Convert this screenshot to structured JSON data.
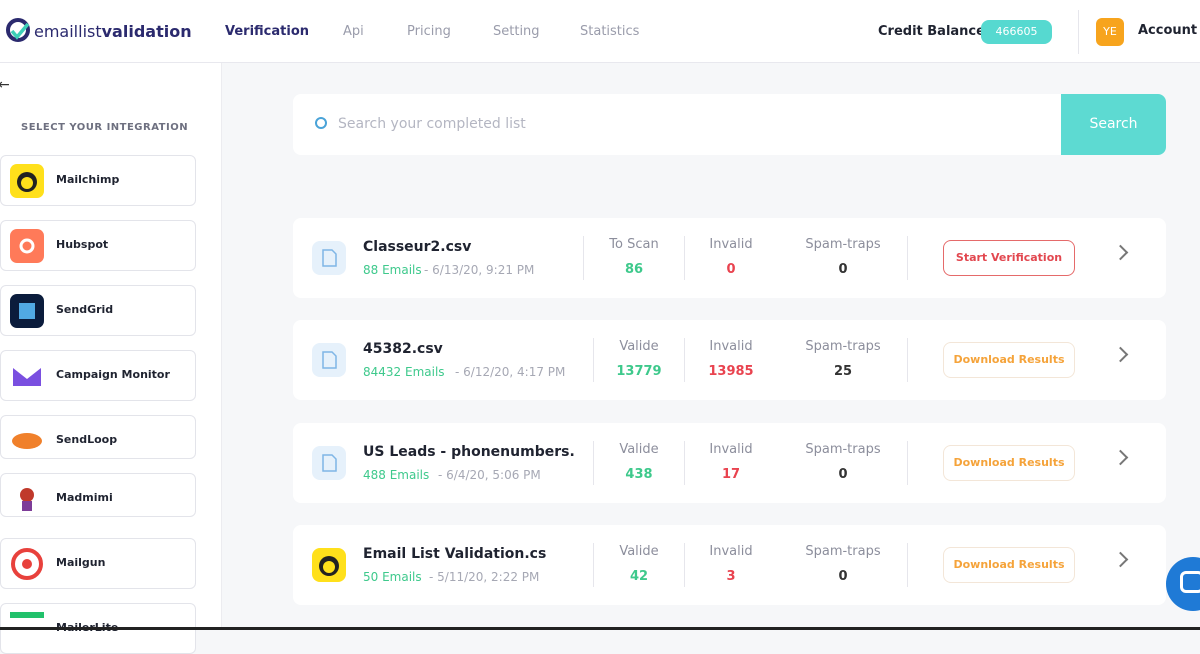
{
  "header": {
    "logo_regular": "emaillist",
    "logo_bold": "validation",
    "nav": [
      "Verification",
      "Api",
      "Pricing",
      "Setting",
      "Statistics"
    ],
    "credit_label": "Credit Balance",
    "credit_value": 466605,
    "avatar": "YE",
    "account": "Account"
  },
  "sidebar": {
    "title": "SELECT YOUR INTEGRATION",
    "integrations": [
      "Mailchimp",
      "Hubspot",
      "SendGrid",
      "Campaign Monitor",
      "SendLoop",
      "Madmimi",
      "Mailgun",
      "MailerLite"
    ]
  },
  "search": {
    "placeholder": "Search your completed list",
    "button": "Search"
  },
  "lists": [
    {
      "name": "Classeur2.csv",
      "emails": "88 Emails",
      "date": "- 6/13/20, 9:21 PM",
      "stats": [
        {
          "label": "To Scan",
          "value": 86
        },
        {
          "label": "Invalid",
          "value": 0
        },
        {
          "label": "Spam-traps",
          "value": 0
        }
      ],
      "action": "Start Verification"
    },
    {
      "name": "45382.csv",
      "emails": "84432 Emails",
      "date": "- 6/12/20, 4:17 PM",
      "stats": [
        {
          "label": "Valide",
          "value": 13779
        },
        {
          "label": "Invalid",
          "value": 13985
        },
        {
          "label": "Spam-traps",
          "value": 25
        }
      ],
      "action": "Download Results"
    },
    {
      "name": "US Leads - phonenumbers.",
      "emails": "488 Emails",
      "date": "- 6/4/20, 5:06 PM",
      "stats": [
        {
          "label": "Valide",
          "value": 438
        },
        {
          "label": "Invalid",
          "value": 17
        },
        {
          "label": "Spam-traps",
          "value": 0
        }
      ],
      "action": "Download Results"
    },
    {
      "name": "Email List Validation.cs",
      "emails": "50 Emails",
      "date": "- 5/11/20, 2:22 PM",
      "stats": [
        {
          "label": "Valide",
          "value": 42
        },
        {
          "label": "Invalid",
          "value": 3
        },
        {
          "label": "Spam-traps",
          "value": 0
        }
      ],
      "action": "Download Results"
    }
  ]
}
